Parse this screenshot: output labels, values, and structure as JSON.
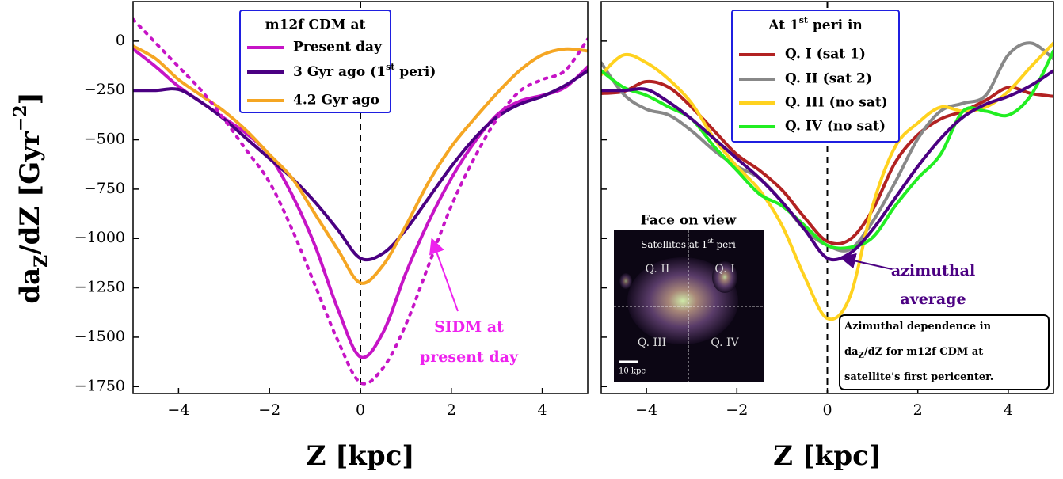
{
  "chart_data": [
    {
      "type": "line",
      "title": "m12f CDM at",
      "xlabel": "Z [kpc]",
      "ylabel": [
        "da",
        "Z",
        "/dZ [Gyr",
        "−2",
        "]"
      ],
      "x": [
        -5,
        -4.5,
        -4,
        -3.5,
        -3,
        -2.5,
        -2,
        -1.5,
        -1,
        -0.5,
        0,
        0.5,
        1,
        1.5,
        2,
        2.5,
        3,
        3.5,
        4,
        4.5,
        5
      ],
      "series": [
        {
          "name": "Present day",
          "color": "#c614c6",
          "values": [
            -40,
            -130,
            -230,
            -310,
            -390,
            -470,
            -580,
            -780,
            -1035,
            -1355,
            -1600,
            -1475,
            -1175,
            -915,
            -695,
            -515,
            -375,
            -305,
            -275,
            -235,
            -130
          ]
        },
        {
          "name": [
            "3 Gyr ago (1",
            "st",
            " peri)"
          ],
          "color": "#4b0082",
          "values": [
            -250,
            -250,
            -245,
            -310,
            -395,
            -495,
            -595,
            -695,
            -815,
            -955,
            -1100,
            -1075,
            -955,
            -795,
            -635,
            -495,
            -385,
            -320,
            -280,
            -225,
            -150
          ]
        },
        {
          "name": "4.2 Gyr ago",
          "color": "#f5a623",
          "values": [
            -25,
            -90,
            -195,
            -275,
            -355,
            -455,
            -575,
            -695,
            -875,
            -1055,
            -1225,
            -1135,
            -935,
            -715,
            -535,
            -395,
            -265,
            -150,
            -70,
            -40,
            -50
          ]
        },
        {
          "color": "#c614c6",
          "style": "dotted",
          "values": [
            110,
            -10,
            -130,
            -250,
            -395,
            -555,
            -715,
            -955,
            -1235,
            -1515,
            -1730,
            -1655,
            -1435,
            -1135,
            -835,
            -595,
            -395,
            -255,
            -195,
            -150,
            10
          ]
        }
      ],
      "annotation": {
        "text": [
          "SIDM at",
          "present day"
        ],
        "color": "#ee22ee"
      },
      "vline": 0,
      "legend": "upper center",
      "xlim": [
        -5,
        5
      ],
      "ylim": [
        -1785,
        200
      ],
      "xticks": [
        {
          "value": -4,
          "label": "−4"
        },
        {
          "value": -2,
          "label": "−2"
        },
        0,
        2,
        4
      ],
      "yticks": [
        0,
        {
          "value": -250,
          "label": "−250"
        },
        {
          "value": -500,
          "label": "−500"
        },
        {
          "value": -750,
          "label": "−750"
        },
        {
          "value": -1000,
          "label": "−1000"
        },
        {
          "value": -1250,
          "label": "−1250"
        },
        {
          "value": -1500,
          "label": "−1500"
        },
        {
          "value": -1750,
          "label": "−1750"
        }
      ],
      "ytick_labels": true
    },
    {
      "type": "line",
      "title": [
        "At 1",
        "st",
        " peri in"
      ],
      "xlabel": "Z [kpc]",
      "x": [
        -5,
        -4.5,
        -4,
        -3.5,
        -3,
        -2.5,
        -2,
        -1.5,
        -1,
        -0.5,
        0,
        0.5,
        1,
        1.5,
        2,
        2.5,
        3,
        3.5,
        4,
        4.5,
        5
      ],
      "series": [
        {
          "name": "Q. I (sat 1)",
          "color": "#b22222",
          "values": [
            -265,
            -255,
            -205,
            -235,
            -335,
            -455,
            -575,
            -655,
            -755,
            -895,
            -1015,
            -1005,
            -855,
            -615,
            -475,
            -395,
            -355,
            -300,
            -235,
            -265,
            -280
          ]
        },
        {
          "name": "Q. II (sat 2)",
          "color": "#888888",
          "values": [
            -110,
            -270,
            -345,
            -375,
            -455,
            -555,
            -635,
            -695,
            -815,
            -955,
            -1035,
            -1055,
            -915,
            -715,
            -495,
            -355,
            -315,
            -275,
            -70,
            -10,
            -90
          ]
        },
        {
          "name": "Q. III (no sat)",
          "color": "#ffd21f",
          "values": [
            -170,
            -70,
            -110,
            -195,
            -315,
            -495,
            -635,
            -755,
            -935,
            -1195,
            -1405,
            -1295,
            -835,
            -535,
            -415,
            -335,
            -355,
            -335,
            -255,
            -130,
            -10
          ]
        },
        {
          "name": "Q. IV (no sat)",
          "color": "#22ee22",
          "values": [
            -150,
            -235,
            -275,
            -335,
            -395,
            -535,
            -655,
            -775,
            -835,
            -935,
            -1035,
            -1045,
            -995,
            -835,
            -695,
            -575,
            -355,
            -355,
            -375,
            -275,
            -50
          ]
        },
        {
          "color": "#4b0082",
          "values": [
            -250,
            -250,
            -245,
            -310,
            -395,
            -495,
            -595,
            -695,
            -815,
            -955,
            -1100,
            -1075,
            -955,
            -795,
            -635,
            -495,
            -385,
            -320,
            -280,
            -225,
            -150
          ]
        }
      ],
      "annotation": {
        "text": [
          "azimuthal",
          "average"
        ],
        "color": "#4b0082"
      },
      "inset": {
        "title": "Face on view",
        "subtitle": [
          "Satellites at 1",
          "st",
          " peri"
        ],
        "quadrants": [
          "Q. II",
          "Q. I",
          "Q. III",
          "Q. IV"
        ],
        "scale": "10 kpc"
      },
      "note": [
        [
          "Azimuthal dependence in"
        ],
        [
          "da",
          "Z",
          "/dZ for m12f CDM at"
        ],
        [
          "satellite's first pericenter."
        ]
      ],
      "vline": 0,
      "legend": "upper center",
      "xlim": [
        -5,
        5
      ],
      "ylim": [
        -1785,
        200
      ],
      "xticks": [
        {
          "value": -4,
          "label": "−4"
        },
        {
          "value": -2,
          "label": "−2"
        },
        0,
        2,
        4
      ],
      "yticks": [
        0,
        -250,
        -500,
        -750,
        -1000,
        -1250,
        -1500,
        -1750
      ],
      "ytick_labels": false
    }
  ]
}
